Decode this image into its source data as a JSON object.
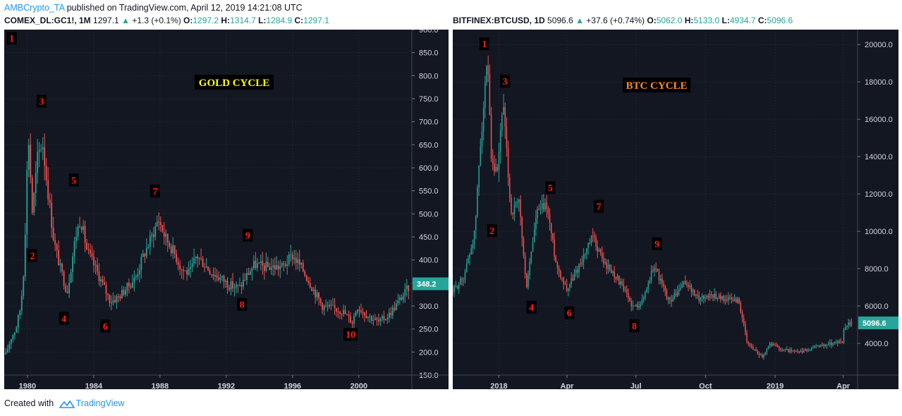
{
  "header": {
    "author": "AMBCrypto_TA",
    "published_text": "published on TradingView.com, April 12, 2019 14:21:08 UTC"
  },
  "footer": {
    "created_with": "Created with",
    "brand": "TradingView"
  },
  "colors": {
    "background": "#131722",
    "up": "#26a69a",
    "down": "#ef5350",
    "grid": "#2a2e39",
    "axis_text": "#d1d4dc",
    "marker_text": "#ff1f1f"
  },
  "chart_data": [
    {
      "type": "candlestick",
      "symbol": "COMEX_DL:GC1!, 1M",
      "last": "1297.1",
      "change": "+1.3 (+0.1%)",
      "ohlc_labels": [
        "O:",
        "H:",
        "L:",
        "C:"
      ],
      "ohlc_values": [
        "1297.2",
        "1314.7",
        "1284.9",
        "1297.1"
      ],
      "annotation": "GOLD CYCLE",
      "price_label": "348.2",
      "price_label_value": 348.2,
      "ylim": [
        150,
        900
      ],
      "y_ticks": [
        150,
        200,
        250,
        300,
        350,
        400,
        450,
        500,
        550,
        600,
        650,
        700,
        750,
        800,
        850,
        900
      ],
      "y_tick_labels": [
        "150.0",
        "200.0",
        "250.0",
        "300.0",
        "350.0",
        "400.0",
        "450.0",
        "500.0",
        "550.0",
        "600.0",
        "650.0",
        "700.0",
        "750.0",
        "800.0",
        "850.0",
        "900.0"
      ],
      "xlim": [
        1978.6,
        2003.2
      ],
      "x_ticks": [
        1980,
        1984,
        1988,
        1992,
        1996,
        2000
      ],
      "x_tick_labels": [
        "1980",
        "1984",
        "1988",
        "1992",
        "1996",
        "2000"
      ],
      "series": [
        {
          "x": 1978.7,
          "y": 195
        },
        {
          "x": 1979.0,
          "y": 230
        },
        {
          "x": 1979.3,
          "y": 250
        },
        {
          "x": 1979.6,
          "y": 300
        },
        {
          "x": 1979.8,
          "y": 390
        },
        {
          "x": 1980.05,
          "y": 680
        },
        {
          "x": 1980.3,
          "y": 500
        },
        {
          "x": 1980.6,
          "y": 620
        },
        {
          "x": 1980.9,
          "y": 660
        },
        {
          "x": 1981.2,
          "y": 560
        },
        {
          "x": 1981.6,
          "y": 440
        },
        {
          "x": 1982.0,
          "y": 380
        },
        {
          "x": 1982.4,
          "y": 330
        },
        {
          "x": 1982.9,
          "y": 450
        },
        {
          "x": 1983.2,
          "y": 490
        },
        {
          "x": 1983.6,
          "y": 420
        },
        {
          "x": 1984.0,
          "y": 390
        },
        {
          "x": 1984.5,
          "y": 350
        },
        {
          "x": 1985.0,
          "y": 310
        },
        {
          "x": 1985.5,
          "y": 320
        },
        {
          "x": 1986.0,
          "y": 340
        },
        {
          "x": 1986.5,
          "y": 360
        },
        {
          "x": 1987.0,
          "y": 410
        },
        {
          "x": 1987.5,
          "y": 450
        },
        {
          "x": 1987.9,
          "y": 490
        },
        {
          "x": 1988.3,
          "y": 450
        },
        {
          "x": 1988.8,
          "y": 420
        },
        {
          "x": 1989.3,
          "y": 380
        },
        {
          "x": 1989.8,
          "y": 370
        },
        {
          "x": 1990.2,
          "y": 410
        },
        {
          "x": 1990.7,
          "y": 390
        },
        {
          "x": 1991.2,
          "y": 370
        },
        {
          "x": 1991.7,
          "y": 360
        },
        {
          "x": 1992.2,
          "y": 345
        },
        {
          "x": 1992.8,
          "y": 340
        },
        {
          "x": 1993.3,
          "y": 370
        },
        {
          "x": 1993.7,
          "y": 390
        },
        {
          "x": 1994.3,
          "y": 385
        },
        {
          "x": 1994.8,
          "y": 385
        },
        {
          "x": 1995.4,
          "y": 385
        },
        {
          "x": 1996.0,
          "y": 410
        },
        {
          "x": 1996.6,
          "y": 380
        },
        {
          "x": 1997.2,
          "y": 340
        },
        {
          "x": 1997.8,
          "y": 300
        },
        {
          "x": 1998.4,
          "y": 295
        },
        {
          "x": 1999.0,
          "y": 290
        },
        {
          "x": 1999.6,
          "y": 265
        },
        {
          "x": 1999.9,
          "y": 300
        },
        {
          "x": 2000.5,
          "y": 280
        },
        {
          "x": 2001.2,
          "y": 265
        },
        {
          "x": 2001.8,
          "y": 280
        },
        {
          "x": 2002.4,
          "y": 310
        },
        {
          "x": 2003.0,
          "y": 340
        }
      ],
      "markers": [
        {
          "label": "1",
          "x": 1979.05,
          "y": 880
        },
        {
          "label": "2",
          "x": 1980.3,
          "y": 408
        },
        {
          "label": "3",
          "x": 1980.85,
          "y": 743
        },
        {
          "label": "4",
          "x": 1982.2,
          "y": 272
        },
        {
          "label": "5",
          "x": 1982.8,
          "y": 572
        },
        {
          "label": "6",
          "x": 1984.7,
          "y": 255
        },
        {
          "label": "7",
          "x": 1987.7,
          "y": 548
        },
        {
          "label": "8",
          "x": 1992.95,
          "y": 302
        },
        {
          "label": "9",
          "x": 1993.3,
          "y": 452
        },
        {
          "label": "10",
          "x": 1999.5,
          "y": 237
        }
      ]
    },
    {
      "type": "candlestick",
      "symbol": "BITFINEX:BTCUSD, 1D",
      "last": "5096.6",
      "change": "+37.6 (+0.74%)",
      "ohlc_labels": [
        "O:",
        "H:",
        "L:",
        "C:"
      ],
      "ohlc_values": [
        "5062.0",
        "5133.0",
        "4934.7",
        "5096.6"
      ],
      "annotation": "BTC CYCLE",
      "price_label": "5096.6",
      "price_label_value": 5096.6,
      "ylim": [
        2300,
        20800
      ],
      "y_ticks": [
        4000,
        6000,
        8000,
        10000,
        12000,
        14000,
        16000,
        18000,
        20000
      ],
      "y_tick_labels": [
        "4000.0",
        "6000.0",
        "8000.0",
        "10000.0",
        "12000.0",
        "14000.0",
        "16000.0",
        "18000.0",
        "20000.0"
      ],
      "xlim": [
        "2017-11-01",
        "2019-04-20"
      ],
      "x_ticks": [
        "2018-01-01",
        "2018-04-01",
        "2018-07-01",
        "2018-10-01",
        "2019-01-01",
        "2019-04-01"
      ],
      "x_tick_labels": [
        "2018",
        "Apr",
        "Jul",
        "Oct",
        "2019",
        "Apr"
      ],
      "series": [
        {
          "x": "2017-11-01",
          "y": 6800
        },
        {
          "x": "2017-11-15",
          "y": 7500
        },
        {
          "x": "2017-11-30",
          "y": 9900
        },
        {
          "x": "2017-12-08",
          "y": 15000
        },
        {
          "x": "2017-12-17",
          "y": 19000
        },
        {
          "x": "2017-12-22",
          "y": 13500
        },
        {
          "x": "2017-12-30",
          "y": 13000
        },
        {
          "x": "2018-01-06",
          "y": 17000
        },
        {
          "x": "2018-01-17",
          "y": 11000
        },
        {
          "x": "2018-01-28",
          "y": 11500
        },
        {
          "x": "2018-02-06",
          "y": 6900
        },
        {
          "x": "2018-02-20",
          "y": 11000
        },
        {
          "x": "2018-03-05",
          "y": 11400
        },
        {
          "x": "2018-03-18",
          "y": 8200
        },
        {
          "x": "2018-04-01",
          "y": 6900
        },
        {
          "x": "2018-04-15",
          "y": 8000
        },
        {
          "x": "2018-05-05",
          "y": 9700
        },
        {
          "x": "2018-05-20",
          "y": 8300
        },
        {
          "x": "2018-06-05",
          "y": 7600
        },
        {
          "x": "2018-06-28",
          "y": 5900
        },
        {
          "x": "2018-07-10",
          "y": 6300
        },
        {
          "x": "2018-07-25",
          "y": 8200
        },
        {
          "x": "2018-08-14",
          "y": 6200
        },
        {
          "x": "2018-09-05",
          "y": 7300
        },
        {
          "x": "2018-09-20",
          "y": 6400
        },
        {
          "x": "2018-10-10",
          "y": 6600
        },
        {
          "x": "2018-10-25",
          "y": 6400
        },
        {
          "x": "2018-11-14",
          "y": 6300
        },
        {
          "x": "2018-11-25",
          "y": 4000
        },
        {
          "x": "2018-12-15",
          "y": 3300
        },
        {
          "x": "2018-12-25",
          "y": 4000
        },
        {
          "x": "2019-01-10",
          "y": 3700
        },
        {
          "x": "2019-02-01",
          "y": 3500
        },
        {
          "x": "2019-02-24",
          "y": 3800
        },
        {
          "x": "2019-03-15",
          "y": 4000
        },
        {
          "x": "2019-03-31",
          "y": 4100
        },
        {
          "x": "2019-04-03",
          "y": 5000
        },
        {
          "x": "2019-04-12",
          "y": 5096.6
        }
      ],
      "markers": [
        {
          "label": "1",
          "x": "2017-12-13",
          "y": 20000
        },
        {
          "label": "2",
          "x": "2017-12-23",
          "y": 10000
        },
        {
          "label": "3",
          "x": "2018-01-09",
          "y": 18000
        },
        {
          "label": "4",
          "x": "2018-02-13",
          "y": 5900
        },
        {
          "label": "5",
          "x": "2018-03-10",
          "y": 12300
        },
        {
          "label": "6",
          "x": "2018-04-04",
          "y": 5600
        },
        {
          "label": "7",
          "x": "2018-05-13",
          "y": 11300
        },
        {
          "label": "8",
          "x": "2018-06-29",
          "y": 4900
        },
        {
          "label": "9",
          "x": "2018-07-29",
          "y": 9300
        }
      ]
    }
  ]
}
